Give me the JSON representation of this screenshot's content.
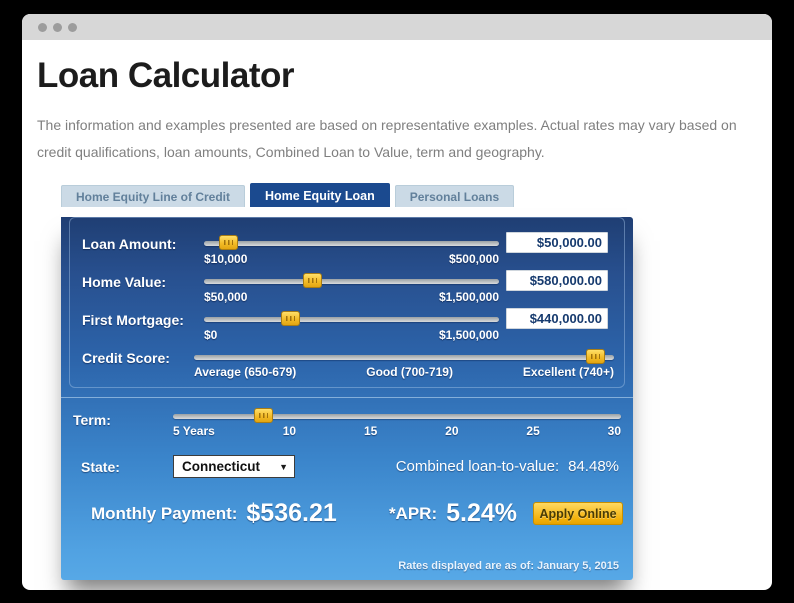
{
  "window": {
    "controls": [
      "close",
      "minimize",
      "maximize"
    ]
  },
  "page": {
    "title": "Loan Calculator",
    "disclaimer": "The information and examples presented are based on representative examples. Actual rates may vary based on credit qualifications, loan amounts, Combined Loan to Value, term and geography."
  },
  "tabs": [
    {
      "label": "Home Equity Line of Credit",
      "active": false
    },
    {
      "label": "Home Equity Loan",
      "active": true
    },
    {
      "label": "Personal Loans",
      "active": false
    }
  ],
  "calculator": {
    "sliders": [
      {
        "label": "Loan Amount:",
        "min_label": "$10,000",
        "max_label": "$500,000",
        "value": "$50,000.00",
        "position_pct": 8
      },
      {
        "label": "Home Value:",
        "min_label": "$50,000",
        "max_label": "$1,500,000",
        "value": "$580,000.00",
        "position_pct": 36.5
      },
      {
        "label": "First Mortgage:",
        "min_label": "$0",
        "max_label": "$1,500,000",
        "value": "$440,000.00",
        "position_pct": 29
      }
    ],
    "credit_score": {
      "label": "Credit Score:",
      "tick_labels": [
        "Average (650-679)",
        "Good (700-719)",
        "Excellent (740+)"
      ],
      "position_pct": 95.5
    },
    "term": {
      "label": "Term:",
      "tick_labels": [
        "5 Years",
        "10",
        "15",
        "20",
        "25",
        "30"
      ],
      "position_pct": 20
    },
    "state": {
      "label": "State:",
      "selected": "Connecticut"
    },
    "cltv": {
      "label": "Combined loan-to-value:",
      "value": "84.48%"
    },
    "monthly_payment": {
      "label": "Monthly Payment:",
      "value": "$536.21"
    },
    "apr": {
      "label": "*APR:",
      "value": "5.24%"
    },
    "apply_button_label": "Apply Online",
    "rates_note": "Rates displayed are as of: January 5, 2015"
  },
  "icons": {
    "dropdown_arrow": "▼"
  },
  "colors": {
    "frame": "#000000",
    "titlebar": "#d7d7d7",
    "panel_top": "#1f3e73",
    "panel_bottom": "#57a8e6",
    "tab_active": "#1b4a8f",
    "tab_inactive": "#cbdae6",
    "slider_handle": "#f3bc28",
    "apply_button": "#f2ae07",
    "input_text": "#163a6e"
  }
}
